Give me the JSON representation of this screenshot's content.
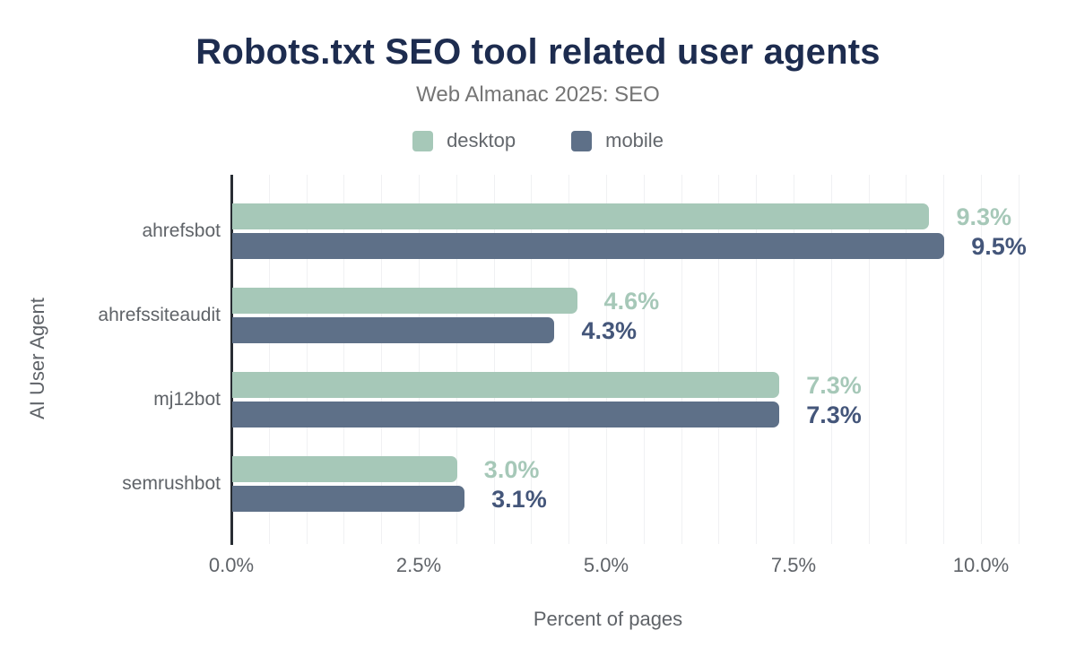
{
  "header": {
    "title": "Robots.txt SEO tool related user agents",
    "subtitle": "Web Almanac 2025: SEO"
  },
  "legend": [
    {
      "label": "desktop",
      "color": "#a6c8b8"
    },
    {
      "label": "mobile",
      "color": "#5e7088"
    }
  ],
  "chart_data": {
    "type": "bar",
    "orientation": "horizontal",
    "title": "Robots.txt SEO tool related user agents",
    "subtitle": "Web Almanac 2025: SEO",
    "categories": [
      "ahrefsbot",
      "ahrefssiteaudit",
      "mj12bot",
      "semrushbot"
    ],
    "series": [
      {
        "name": "desktop",
        "color": "#a6c8b8",
        "label_color": "#a6c8b8",
        "values": [
          9.3,
          4.6,
          7.3,
          3.0
        ],
        "labels": [
          "9.3%",
          "4.6%",
          "7.3%",
          "3.0%"
        ]
      },
      {
        "name": "mobile",
        "color": "#5e7088",
        "label_color": "#44567a",
        "values": [
          9.5,
          4.3,
          7.3,
          3.1
        ],
        "labels": [
          "9.5%",
          "4.3%",
          "7.3%",
          "3.1%"
        ]
      }
    ],
    "xlabel": "Percent of pages",
    "ylabel": "AI User Agent",
    "x_ticks": [
      {
        "value": 0,
        "label": "0.0%"
      },
      {
        "value": 2.5,
        "label": "2.5%"
      },
      {
        "value": 5,
        "label": "5.0%"
      },
      {
        "value": 7.5,
        "label": "7.5%"
      },
      {
        "value": 10,
        "label": "10.0%"
      }
    ],
    "xlim": [
      0,
      10.5
    ],
    "grid": {
      "minor_interval": 0.5,
      "color": "#f0f1f3",
      "axis_color": "#282d33"
    }
  }
}
